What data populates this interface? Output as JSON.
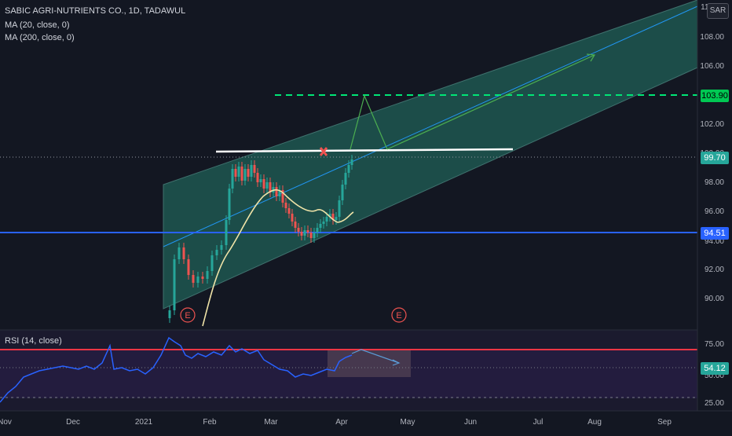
{
  "header": {
    "symbol_line": "SABIC AGRI-NUTRIENTS CO., 1D, TADAWUL",
    "ma20": "MA (20, close, 0)",
    "ma200": "MA (200, close, 0)",
    "currency": "SAR"
  },
  "price_axis": {
    "ticks": [
      "110.00",
      "108.00",
      "106.00",
      "102.00",
      "100.00",
      "98.00",
      "96.00",
      "94.00",
      "92.00",
      "90.00"
    ],
    "price_label": "99.70",
    "target_label": "103.90",
    "support_label": "94.51"
  },
  "rsi": {
    "title": "RSI (14, close)",
    "upper": "75.00",
    "current": "54.12",
    "mid": "50.00",
    "lower": "25.00"
  },
  "time_axis": [
    "Nov",
    "Dec",
    "2021",
    "Feb",
    "Mar",
    "Apr",
    "May",
    "Jun",
    "Jul",
    "Aug",
    "Sep"
  ],
  "markers": {
    "earnings": "E"
  },
  "colors": {
    "background": "#131722",
    "up": "#26a69a",
    "down": "#ef5350",
    "channel": "#2a8c80",
    "support": "#2962ff",
    "target": "#00e676",
    "rsi_line": "#2962ff",
    "rsi_upper": "#f23645",
    "ma20": "#f0e4a8"
  }
}
